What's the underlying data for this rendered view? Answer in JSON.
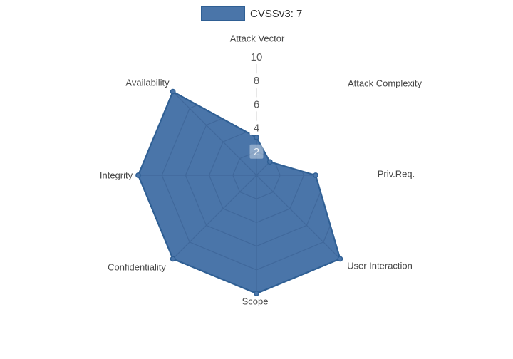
{
  "legend": {
    "label": "CVSSv3: 7"
  },
  "colors": {
    "series_fill": "#4a75a9",
    "series_outline": "#2f5f94",
    "grid_web": "#40689b",
    "axis_line": "#cfcfcf",
    "tick_text": "#5a5a5a",
    "tick_text_over_polygon": "rgba(255,255,255,0.85)",
    "tick_backdrop": "rgba(255,255,255,0.95)",
    "tick_backdrop_over_polygon": "rgba(255,255,255,0.38)",
    "label_text": "#474747",
    "legend_text": "#2e2e2e"
  },
  "chart_data": {
    "type": "radar",
    "title": "",
    "legend_entries": [
      "CVSSv3: 7"
    ],
    "legend_position": "top-center",
    "categories": [
      "Attack Vector",
      "Attack Complexity",
      "Priv.Req.",
      "User Interaction",
      "Scope",
      "Confidentiality",
      "Integrity",
      "Availability"
    ],
    "series": [
      {
        "name": "CVSSv3: 7",
        "values": [
          3.2,
          1.6,
          5,
          10,
          10,
          10,
          10,
          10
        ]
      }
    ],
    "radial_ticks": [
      10,
      8,
      6,
      4,
      2
    ],
    "radial_range": [
      0,
      10
    ],
    "start_axis": "top",
    "direction": "clockwise",
    "grid": "web visible inside polygon only",
    "axes_count": 8
  }
}
